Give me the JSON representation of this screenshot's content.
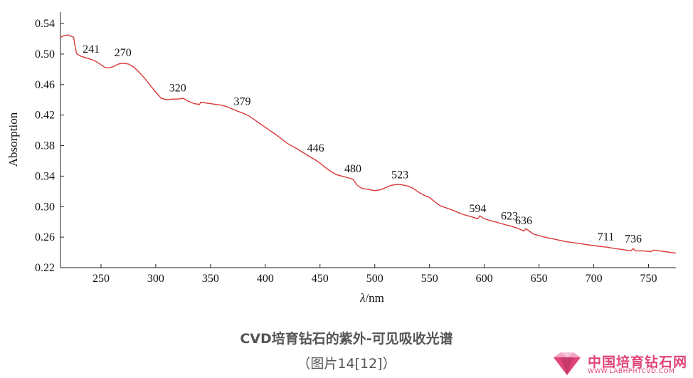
{
  "chart_data": {
    "type": "line",
    "xlabel_var": "λ",
    "xlabel_unit": "/nm",
    "ylabel": "Absorption",
    "xlim": [
      213,
      775
    ],
    "ylim": [
      0.22,
      0.555
    ],
    "x_ticks": [
      "250",
      "300",
      "350",
      "400",
      "450",
      "500",
      "550",
      "600",
      "650",
      "700",
      "750"
    ],
    "y_ticks": [
      "0.22",
      "0.26",
      "0.30",
      "0.34",
      "0.38",
      "0.42",
      "0.46",
      "0.50",
      "0.54"
    ],
    "grid": false,
    "line_color": "#d9383a",
    "series": [
      {
        "x": [
          213,
          216,
          220,
          225,
          227,
          228,
          232,
          241,
          246,
          250,
          254,
          258,
          262,
          266,
          270,
          275,
          280,
          285,
          290,
          295,
          300,
          305,
          310,
          315,
          320,
          325,
          330,
          335,
          340,
          341,
          345,
          350,
          355,
          360,
          365,
          370,
          375,
          379,
          385,
          390,
          395,
          400,
          410,
          420,
          430,
          440,
          446,
          450,
          455,
          460,
          465,
          470,
          475,
          480,
          484,
          488,
          492,
          496,
          500,
          505,
          510,
          515,
          520,
          523,
          527,
          530,
          535,
          540,
          545,
          550,
          555,
          560,
          570,
          580,
          590,
          594,
          596,
          600,
          610,
          620,
          623,
          630,
          636,
          638,
          645,
          655,
          665,
          675,
          685,
          695,
          705,
          711,
          715,
          720,
          725,
          730,
          734,
          736,
          738,
          745,
          752,
          755,
          760,
          765,
          770,
          775
        ],
        "y": [
          0.522,
          0.524,
          0.525,
          0.522,
          0.505,
          0.5,
          0.497,
          0.493,
          0.49,
          0.486,
          0.482,
          0.482,
          0.484,
          0.487,
          0.488,
          0.487,
          0.483,
          0.476,
          0.468,
          0.459,
          0.45,
          0.442,
          0.44,
          0.441,
          0.441,
          0.442,
          0.438,
          0.435,
          0.434,
          0.437,
          0.436,
          0.435,
          0.434,
          0.433,
          0.431,
          0.428,
          0.425,
          0.423,
          0.419,
          0.414,
          0.409,
          0.404,
          0.394,
          0.383,
          0.375,
          0.366,
          0.361,
          0.357,
          0.351,
          0.346,
          0.342,
          0.34,
          0.338,
          0.336,
          0.328,
          0.324,
          0.323,
          0.322,
          0.321,
          0.322,
          0.325,
          0.328,
          0.329,
          0.329,
          0.328,
          0.327,
          0.324,
          0.319,
          0.315,
          0.312,
          0.306,
          0.301,
          0.296,
          0.29,
          0.286,
          0.284,
          0.288,
          0.284,
          0.28,
          0.276,
          0.275,
          0.272,
          0.268,
          0.271,
          0.264,
          0.26,
          0.257,
          0.254,
          0.252,
          0.25,
          0.248,
          0.247,
          0.246,
          0.245,
          0.244,
          0.243,
          0.242,
          0.245,
          0.242,
          0.242,
          0.241,
          0.243,
          0.242,
          0.241,
          0.24,
          0.239
        ]
      }
    ],
    "annotations": [
      {
        "text": "241",
        "x": 241,
        "y": 0.502
      },
      {
        "text": "270",
        "x": 270,
        "y": 0.497
      },
      {
        "text": "320",
        "x": 320,
        "y": 0.451
      },
      {
        "text": "379",
        "x": 379,
        "y": 0.433
      },
      {
        "text": "446",
        "x": 446,
        "y": 0.372
      },
      {
        "text": "480",
        "x": 480,
        "y": 0.345
      },
      {
        "text": "523",
        "x": 523,
        "y": 0.337
      },
      {
        "text": "594",
        "x": 594,
        "y": 0.293
      },
      {
        "text": "623",
        "x": 623,
        "y": 0.283
      },
      {
        "text": "636",
        "x": 636,
        "y": 0.277
      },
      {
        "text": "711",
        "x": 711,
        "y": 0.256
      },
      {
        "text": "736",
        "x": 736,
        "y": 0.253
      }
    ]
  },
  "caption": {
    "title": "CVD培育钻石的紫外-可见吸收光谱",
    "subtitle": "（图片14[12]）"
  },
  "watermark": {
    "text": "中国培育钻石网",
    "url": "WWW.LABHPHTCVD.COM",
    "logo": "diamond-logo-icon",
    "color": "#e0447a"
  }
}
